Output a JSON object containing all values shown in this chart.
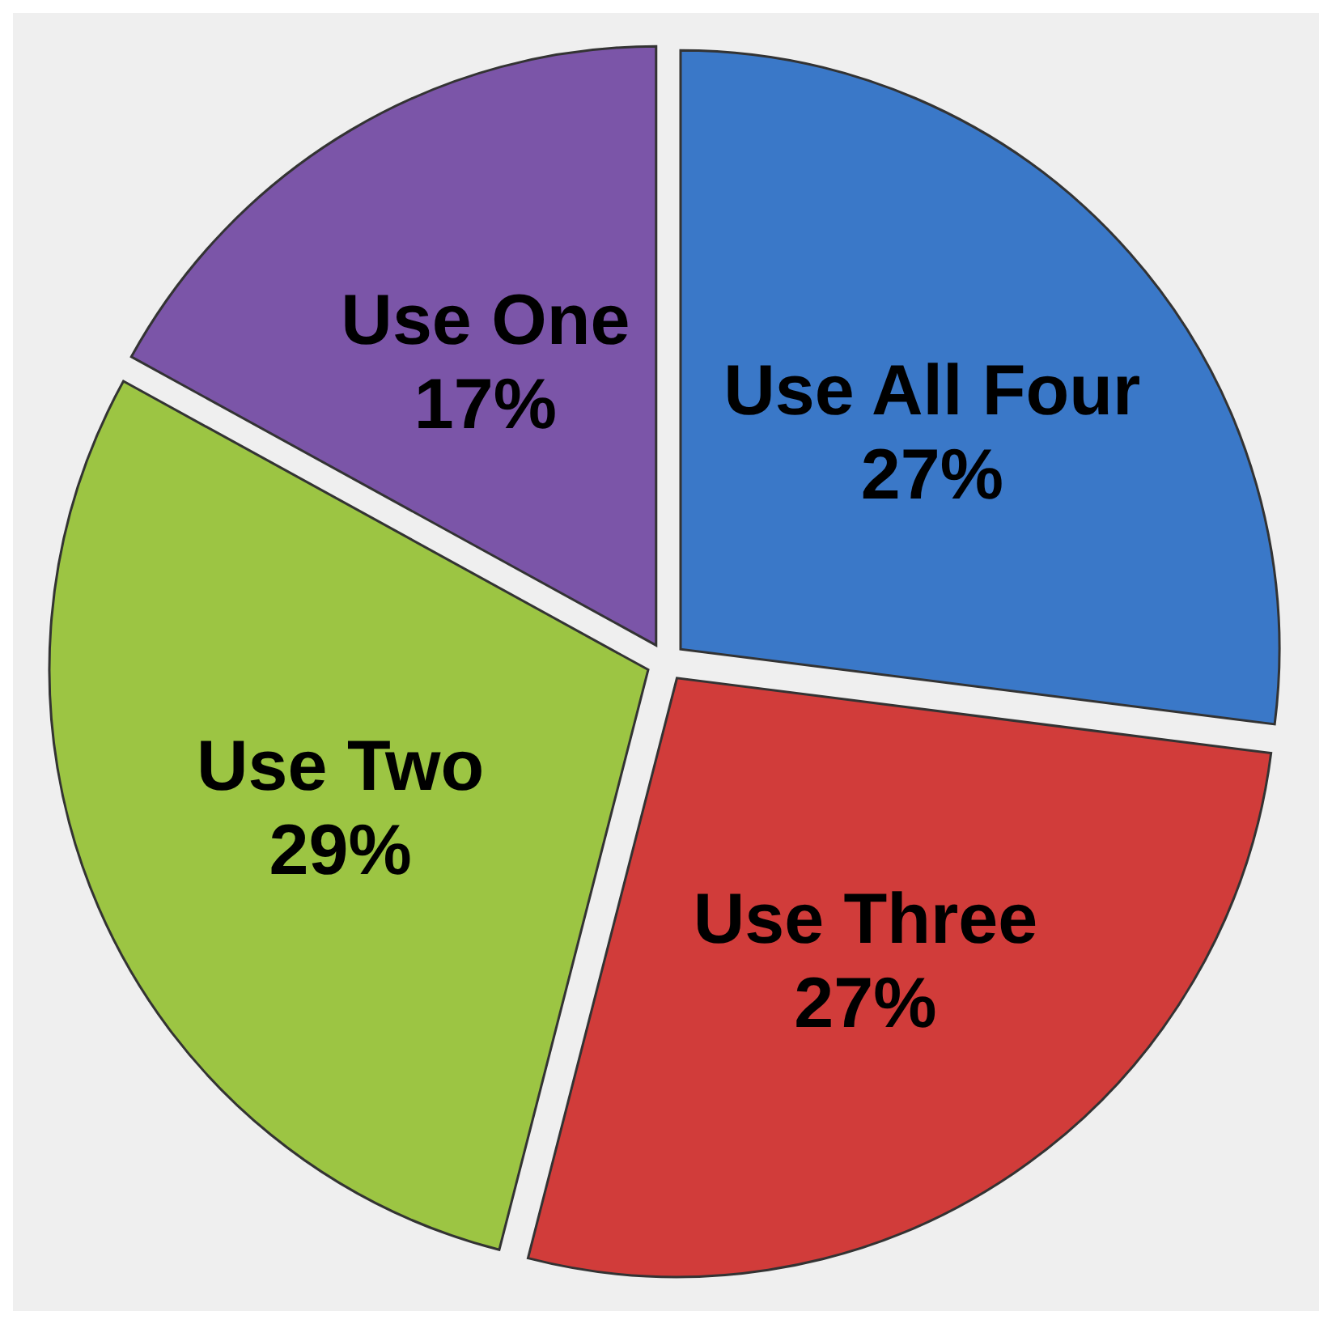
{
  "chart_data": {
    "type": "pie",
    "categories": [
      "Use All Four",
      "Use Three",
      "Use Two",
      "Use One"
    ],
    "values": [
      27,
      27,
      29,
      17
    ],
    "colors": [
      "#3a78c8",
      "#d13c3a",
      "#9cc543",
      "#7b55a8"
    ],
    "value_labels": [
      "27%",
      "27%",
      "29%",
      "17%"
    ]
  }
}
